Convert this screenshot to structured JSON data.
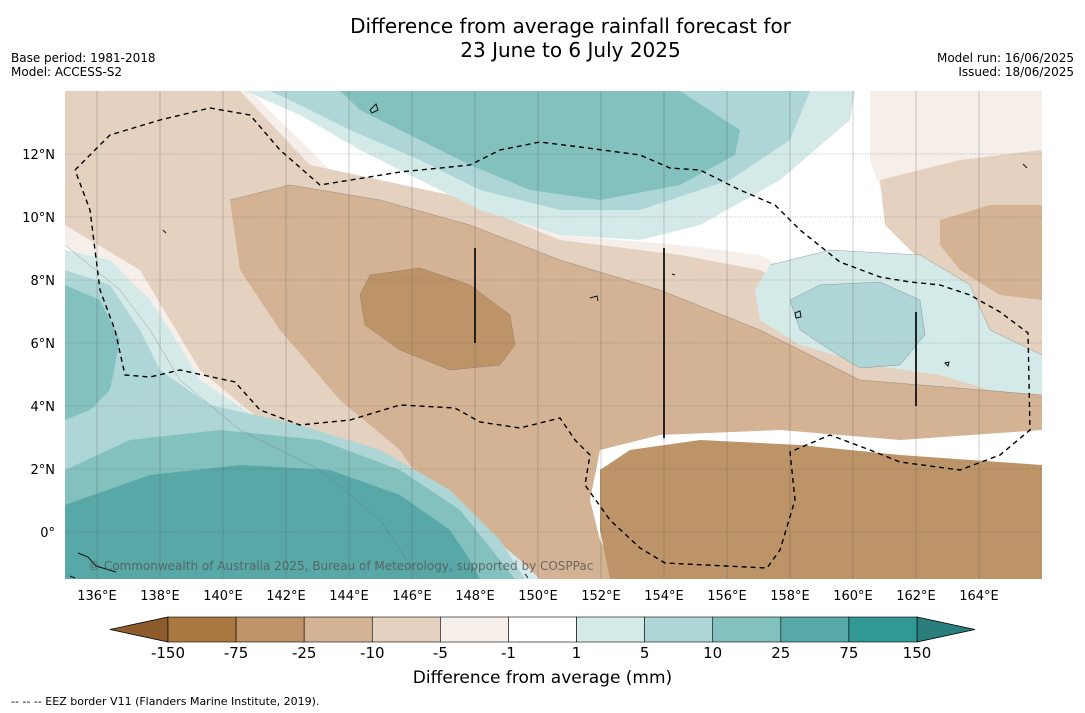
{
  "title": {
    "line1": "Difference from average rainfall forecast for",
    "line2": "23 June to 6 July 2025"
  },
  "meta_left": {
    "base_period": "Base period: 1981-2018",
    "model": "Model: ACCESS-S2"
  },
  "meta_right": {
    "model_run": "Model run: 16/06/2025",
    "issued": "Issued: 18/06/2025"
  },
  "map": {
    "lat_labels": [
      "12°N",
      "10°N",
      "8°N",
      "6°N",
      "4°N",
      "2°N",
      "0°"
    ],
    "lon_labels": [
      "136°E",
      "138°E",
      "140°E",
      "142°E",
      "144°E",
      "146°E",
      "148°E",
      "150°E",
      "152°E",
      "154°E",
      "156°E",
      "158°E",
      "160°E",
      "162°E",
      "164°E"
    ],
    "copyright": "© Commonwealth of Australia 2025, Bureau of Meteorology, supported by COSPPac"
  },
  "colorbar": {
    "ticks": [
      "-150",
      "-75",
      "-25",
      "-10",
      "-5",
      "-1",
      "1",
      "5",
      "10",
      "25",
      "75",
      "150"
    ],
    "colors": [
      "#a97840",
      "#bd9468",
      "#d3b394",
      "#e4d1c0",
      "#f5eee9",
      "#ffffff",
      "#d4eae9",
      "#aed6d6",
      "#83c1bf",
      "#58a8a8",
      "#329894"
    ],
    "end_left_color": "#8e5c2c",
    "end_right_color": "#2a7f7c",
    "label": "Difference from average (mm)"
  },
  "footer": "--  --  -- EEZ border V11 (Flanders Marine Institute, 2019)."
}
